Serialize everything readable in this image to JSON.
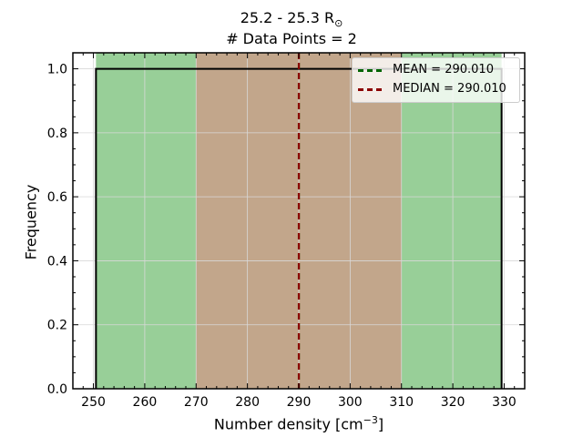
{
  "chart_data": {
    "type": "bar",
    "title_line1": "25.2 - 25.3 R",
    "title_sun_symbol": "⊙",
    "title_line2": "# Data Points = 2",
    "xlabel": "Number density [cm",
    "xlabel_exp": "−3",
    "xlabel_close": "]",
    "ylabel": "Frequency",
    "xlim": [
      246,
      334
    ],
    "ylim": [
      0,
      1.05
    ],
    "xticks": [
      250,
      260,
      270,
      280,
      290,
      300,
      310,
      320,
      330
    ],
    "yticks": [
      0.0,
      0.2,
      0.4,
      0.6,
      0.8,
      1.0
    ],
    "ytick_labels": [
      "0.0",
      "0.2",
      "0.4",
      "0.6",
      "0.8",
      "1.0"
    ],
    "histogram": {
      "bin_edges": [
        250.5,
        329.5
      ],
      "counts": [
        1.0
      ],
      "color": "#000000"
    },
    "shaded_regions": [
      {
        "x0": 250.5,
        "x1": 270.0,
        "color": "#98cf98"
      },
      {
        "x0": 270.0,
        "x1": 310.0,
        "color": "#c2a68b"
      },
      {
        "x0": 310.0,
        "x1": 329.5,
        "color": "#98cf98"
      }
    ],
    "lines": [
      {
        "name": "MEAN = 290.010",
        "x": 290.01,
        "color": "#006400"
      },
      {
        "name": "MEDIAN = 290.010",
        "x": 290.01,
        "color": "#8b0000"
      }
    ],
    "legend_position": "upper right",
    "grid": true
  }
}
